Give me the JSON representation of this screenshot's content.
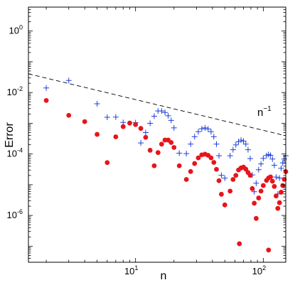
{
  "chart_data": {
    "type": "scatter",
    "xlabel": "n",
    "ylabel": "Error",
    "xscale": "log",
    "yscale": "log",
    "xlim": [
      1.45,
      150
    ],
    "ylim": [
      3e-08,
      6
    ],
    "grid": false,
    "xtick_labels": [
      {
        "value": 10,
        "base": "10",
        "exp": "1"
      },
      {
        "value": 100,
        "base": "10",
        "exp": "2"
      }
    ],
    "ytick_labels": [
      {
        "value": 1,
        "base": "10",
        "exp": "0"
      },
      {
        "value": 0.01,
        "base": "10",
        "exp": "-2"
      },
      {
        "value": 0.0001,
        "base": "10",
        "exp": "-4"
      },
      {
        "value": 1e-06,
        "base": "10",
        "exp": "-6"
      }
    ],
    "reference_line": {
      "label_base": "n",
      "label_exp": "−1",
      "style": "dashed",
      "x": [
        1.45,
        150
      ],
      "y": [
        0.0405,
        0.000392
      ]
    },
    "colors": {
      "series1": "#1f3fd6",
      "series2": "#e8141a",
      "reference": "#000000"
    },
    "series": [
      {
        "marker": "plus",
        "x": [
          2,
          3,
          5,
          6,
          7,
          8,
          10,
          11,
          12,
          13,
          14,
          15,
          16,
          17,
          18,
          19,
          20,
          22,
          25,
          27,
          29,
          31,
          33,
          35,
          37,
          39,
          41,
          43,
          45,
          47,
          50,
          55,
          58,
          61,
          64,
          67,
          70,
          73,
          76,
          79,
          82,
          85,
          88,
          92,
          96,
          100,
          106,
          110,
          114,
          118,
          122,
          126,
          130,
          134,
          138,
          142,
          146,
          150
        ],
        "y": [
          0.0141,
          0.0246,
          0.00429,
          0.00156,
          0.00158,
          0.00106,
          0.00105,
          0.000229,
          0.000498,
          0.000992,
          0.00169,
          0.00251,
          0.00251,
          0.00224,
          0.00175,
          0.00124,
          0.000707,
          0.000106,
          0.000103,
          0.00021,
          0.000363,
          0.000532,
          0.000659,
          0.000708,
          0.00065,
          0.000532,
          0.000363,
          0.00021,
          8.77e-05,
          2.03e-05,
          1.64e-05,
          8.77e-05,
          0.000138,
          0.000198,
          0.000251,
          0.000283,
          0.000263,
          0.00021,
          0.000138,
          7.06e-05,
          2.08e-05,
          5.9e-06,
          1.12e-05,
          3.09e-05,
          4.74e-05,
          7.16e-05,
          8.89e-05,
          9.59e-05,
          9.06e-05,
          6.84e-05,
          4.31e-05,
          1.77e-05,
          5e-06,
          1.65e-05,
          3.42e-05,
          5.16e-05,
          6.84e-05,
          8.77e-05
        ]
      },
      {
        "marker": "dot",
        "x": [
          2,
          3,
          4,
          5,
          6,
          7,
          8,
          9,
          10,
          11,
          12,
          13,
          14,
          15,
          16,
          17,
          18,
          19,
          20,
          22,
          25,
          27,
          29,
          31,
          33,
          35,
          37,
          39,
          41,
          43,
          45,
          47,
          50,
          55,
          58,
          61,
          64,
          67,
          70,
          73,
          76,
          79,
          82,
          85,
          88,
          92,
          96,
          100,
          106,
          110,
          114,
          118,
          122,
          126,
          130,
          134,
          138,
          142,
          146,
          150
        ],
        "y": [
          0.00551,
          0.00181,
          0.00113,
          0.000434,
          5.24e-05,
          0.000361,
          0.000776,
          0.00101,
          0.000906,
          0.000679,
          0.000347,
          0.000132,
          4.13e-05,
          0.000111,
          0.000209,
          0.000284,
          0.000284,
          0.000236,
          0.000163,
          4.13e-05,
          1.48e-05,
          2.69e-05,
          4.89e-05,
          7.47e-05,
          9.36e-05,
          9.84e-05,
          9.06e-05,
          7.47e-05,
          5.31e-05,
          3.17e-05,
          1.35e-05,
          4.9e-06,
          2.2e-06,
          6.2e-06,
          1.48e-05,
          2.01e-05,
          3.02e-05,
          3.51e-05,
          3.74e-05,
          3.21e-05,
          2.49e-05,
          2.01e-05,
          7.5e-06,
          2.5e-06,
          8e-07,
          3.7e-06,
          6.2e-06,
          9.4e-06,
          1.38e-05,
          1.66e-05,
          1.79e-05,
          1.3e-05,
          8.8e-06,
          4.3e-06,
          1.7e-06,
          2.6e-06,
          5.7e-06,
          9.4e-06,
          1.49e-05,
          2.66e-05
        ]
      },
      {
        "marker": "dot",
        "x": [
          65,
          110
        ],
        "y": [
          1.2e-07,
          7.5e-08
        ]
      }
    ]
  }
}
